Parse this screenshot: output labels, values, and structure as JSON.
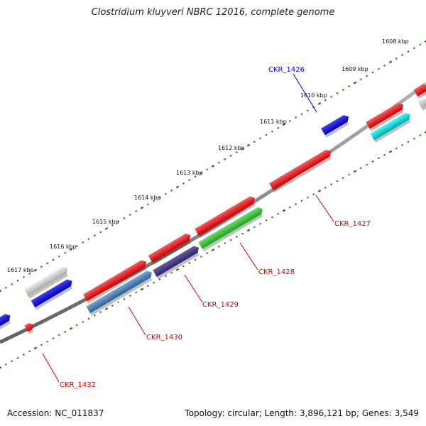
{
  "title": "Clostridium kluyveri NBRC 12016, complete genome",
  "footer": {
    "accession": "Accession: NC_011837",
    "stats": "Topology: circular; Length: 3,896,121 bp; Genes: 3,549"
  },
  "colors": {
    "backbone": "#808080",
    "tick": "#2e7d1e",
    "red": "#ff0000",
    "blue": "#0000ee",
    "gray": "#c0c0c0",
    "green": "#33cc33",
    "steelblue": "#4682b4",
    "purple": "#4b3d8f",
    "cyan": "#00cccc",
    "label_red": "#dd0000",
    "label_blue": "#0000cc"
  },
  "scale_labels": [
    "1608 kbp",
    "1609 kbp",
    "1610 kbp",
    "1611 kbp",
    "1612 kbp",
    "1613 kbp",
    "1614 kbp",
    "1615 kbp",
    "1616 kbp",
    "1617 kbp"
  ],
  "gene_labels": [
    {
      "text": "CKR_1426",
      "color": "blue"
    },
    {
      "text": "CKR_1427",
      "color": "red"
    },
    {
      "text": "CKR_1428",
      "color": "red"
    },
    {
      "text": "CKR_1429",
      "color": "red"
    },
    {
      "text": "CKR_1430",
      "color": "red"
    },
    {
      "text": "CKR_1432",
      "color": "red"
    }
  ]
}
